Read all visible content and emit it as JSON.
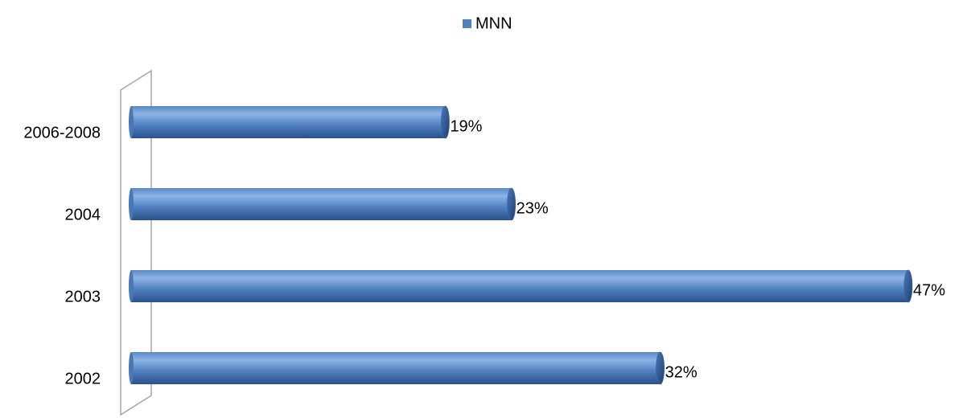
{
  "chart_data": {
    "type": "bar",
    "orientation": "horizontal",
    "categories": [
      "2002",
      "2003",
      "2004",
      "2006-2008"
    ],
    "series": [
      {
        "name": "MNN",
        "color": "#4f81bd",
        "values": [
          32,
          47,
          23,
          19
        ],
        "value_labels": [
          "32%",
          "47%",
          "23%",
          "19%"
        ]
      }
    ],
    "legend": "top"
  }
}
